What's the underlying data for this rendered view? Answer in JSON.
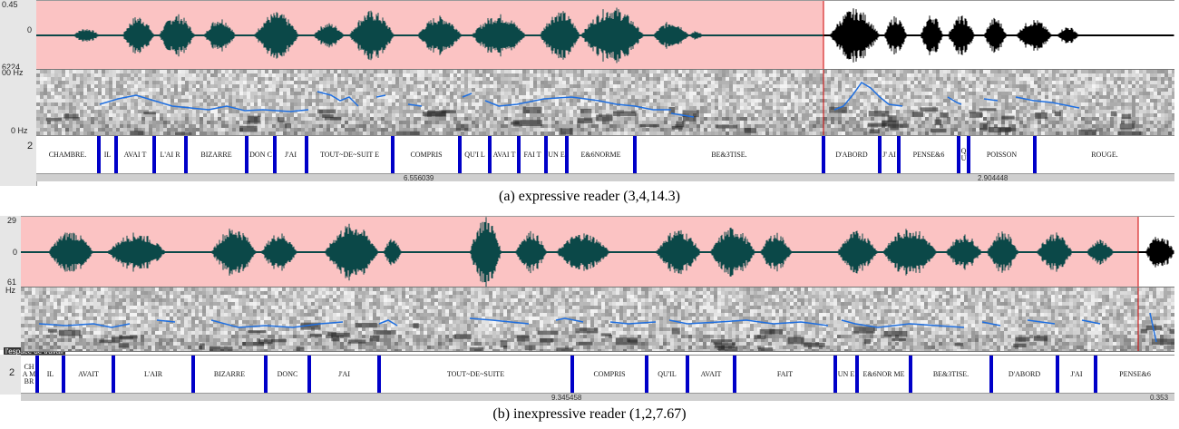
{
  "colors": {
    "selection": "#fbc3c3",
    "wave_selected": "#0b4848",
    "wave_unselected": "#000000",
    "pitch": "#1f6fe0",
    "boundary": "#0000c8"
  },
  "panel_a": {
    "gutter": {
      "top": "0.45",
      "mid": "0",
      "bottom": "6224",
      "spec_top": "00 Hz",
      "spec_bottom": "0 Hz",
      "tier": "2"
    },
    "segments": [
      "CHAMBRE.",
      "IL",
      "AVAI T",
      "L'AI R",
      "BIZARRE",
      "DON C",
      "J'AI",
      "TOUT~DE~SUIT E",
      "COMPRIS",
      "QU'I L",
      "AVAI T",
      "FAI T",
      "UN E",
      "E&6NORME",
      "BE&3TISE.",
      "D'ABORD",
      "J' AI",
      "PENSE&6",
      "Q U",
      "POISSON",
      "ROUGE."
    ],
    "ruler": {
      "left": "6.556039",
      "right": "2.904448"
    },
    "caption": "(a)  expressive reader (3,4,14.3)"
  },
  "panel_b": {
    "gutter": {
      "top": "29",
      "mid": "0",
      "bottom": "61",
      "spec_top": "Hz",
      "tier": "2"
    },
    "workspace": "l'espace de travail",
    "segments": [
      "CH A M BR",
      "IL",
      "AVAIT",
      "L'AIR",
      "BIZARRE",
      "DONC",
      "J'AI",
      "TOUT~DE~SUITE",
      "COMPRIS",
      "QU'IL",
      "AVAIT",
      "FAIT",
      "UN E",
      "E&6NOR ME",
      "BE&3TISE.",
      "D'ABORD",
      "J'AI",
      "PENSE&6"
    ],
    "ruler": {
      "left": "9.345458",
      "right": "0.353"
    },
    "caption": "(b)  inexpressive reader (1,2,7.67)"
  }
}
